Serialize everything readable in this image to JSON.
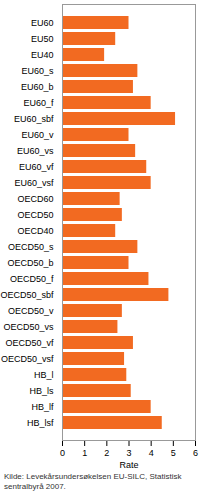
{
  "chart_data": {
    "type": "bar",
    "orientation": "horizontal",
    "categories": [
      "EU60",
      "EU50",
      "EU40",
      "EU60_s",
      "EU60_b",
      "EU60_f",
      "EU60_sbf",
      "EU60_v",
      "EU60_vs",
      "EU60_vf",
      "EU60_vsf",
      "OECD60",
      "OECD50",
      "OECD40",
      "OECD50_s",
      "OECD50_b",
      "OECD50_f",
      "OECD50_sbf",
      "OECD50_v",
      "OECD50_vs",
      "OECD50_vf",
      "OECD50_vsf",
      "HB_l",
      "HB_ls",
      "HB_lf",
      "HB_lsf"
    ],
    "values": [
      3.0,
      2.4,
      1.9,
      3.4,
      3.2,
      4.0,
      5.1,
      3.0,
      3.3,
      3.8,
      4.0,
      2.6,
      2.7,
      2.4,
      3.4,
      3.0,
      3.9,
      4.8,
      2.7,
      2.5,
      3.2,
      2.8,
      2.9,
      3.1,
      4.0,
      4.5
    ],
    "color": "#f26a21",
    "xlabel": "Rate",
    "xlim": [
      0,
      6
    ],
    "xticks": [
      0,
      1,
      2,
      3,
      4,
      5,
      6
    ],
    "grid": false,
    "caption": "Kilde: Levekårsundersøkelsen EU-SILC, Statistisk sentralbyrå 2007."
  }
}
